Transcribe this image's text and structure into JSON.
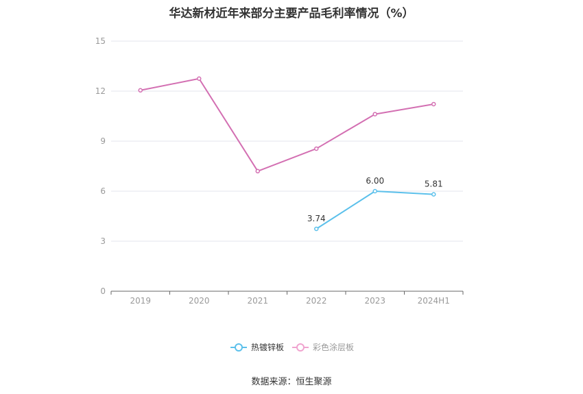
{
  "chart_data": {
    "type": "line",
    "title": "华达新材近年来部分主要产品毛利率情况（%）",
    "categories": [
      "2019",
      "2020",
      "2021",
      "2022",
      "2023",
      "2024H1"
    ],
    "ylim": [
      0,
      15
    ],
    "yticks": [
      0,
      3,
      6,
      9,
      12,
      15
    ],
    "grid": true,
    "legend_position": "bottom",
    "series": [
      {
        "name": "热镀锌板",
        "color": "#5bc0eb",
        "values": [
          null,
          null,
          null,
          3.74,
          6.0,
          5.81
        ],
        "labels": [
          null,
          null,
          null,
          "3.74",
          "6.00",
          "5.81"
        ],
        "legend_text_color": "#333333"
      },
      {
        "name": "彩色涂层板",
        "color": "#d36fb2",
        "legend_color": "#f0a3cf",
        "values": [
          12.05,
          12.75,
          7.2,
          8.55,
          10.62,
          11.22
        ],
        "labels": [
          null,
          null,
          null,
          null,
          null,
          null
        ],
        "legend_text_color": "#999999"
      }
    ],
    "source": "数据来源：恒生聚源"
  }
}
